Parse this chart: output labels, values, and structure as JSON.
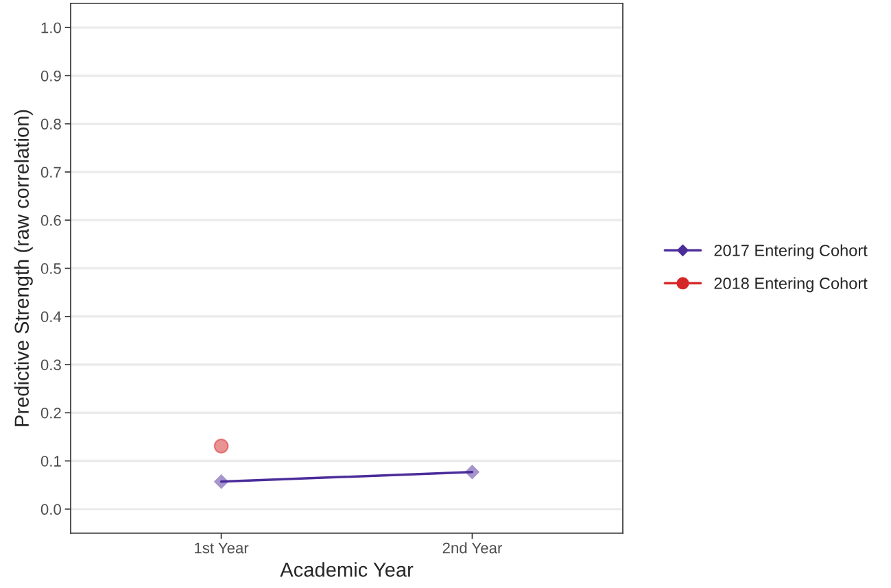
{
  "chart_data": {
    "type": "line",
    "xlabel": "Academic Year",
    "ylabel": "Predictive Strength (raw correlation)",
    "categories": [
      "1st Year",
      "2nd Year"
    ],
    "series": [
      {
        "name": "2017 Entering Cohort",
        "color": "#4b2c9a",
        "marker": "diamond",
        "values": [
          0.057,
          0.077
        ]
      },
      {
        "name": "2018 Entering Cohort",
        "color": "#d62728",
        "marker": "circle",
        "values": [
          0.131,
          null
        ]
      }
    ],
    "ylim": [
      -0.05,
      1.05
    ],
    "yticks": [
      {
        "value": 0,
        "label": "0.0"
      },
      0.1,
      0.2,
      0.3,
      0.4,
      0.5,
      0.6,
      0.7,
      0.8,
      0.9,
      {
        "value": 1,
        "label": "1.0"
      }
    ],
    "grid": "y",
    "legend": "right"
  }
}
